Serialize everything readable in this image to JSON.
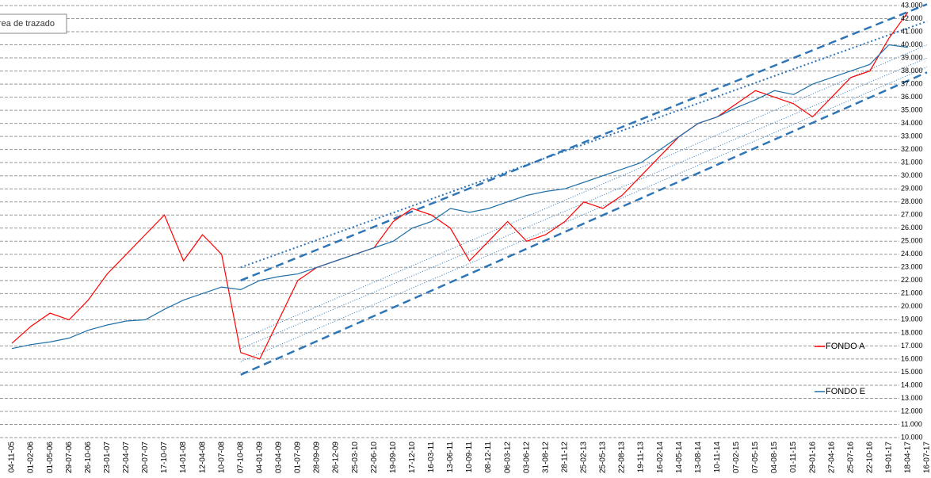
{
  "chart_data": {
    "type": "line",
    "tooltip": "rea de trazado",
    "categories": [
      "04-11-05",
      "01-02-06",
      "01-05-06",
      "29-07-06",
      "26-10-06",
      "23-01-07",
      "22-04-07",
      "20-07-07",
      "17-10-07",
      "14-01-08",
      "12-04-08",
      "10-07-08",
      "07-10-08",
      "04-01-09",
      "03-04-09",
      "01-07-09",
      "28-09-09",
      "26-12-09",
      "25-03-10",
      "22-06-10",
      "19-09-10",
      "17-12-10",
      "16-03-11",
      "13-06-11",
      "10-09-11",
      "08-12-11",
      "06-03-12",
      "03-06-12",
      "31-08-12",
      "28-11-12",
      "25-02-13",
      "25-05-13",
      "22-08-13",
      "19-11-13",
      "16-02-14",
      "14-05-14",
      "13-08-14",
      "10-11-14",
      "07-02-15",
      "07-05-15",
      "04-08-15",
      "01-11-15",
      "29-01-16",
      "27-04-16",
      "25-07-16",
      "22-10-16",
      "19-01-17",
      "18-04-17",
      "16-07-17"
    ],
    "series": [
      {
        "name": "FONDO A",
        "color": "#ff0000",
        "values": [
          17200,
          18500,
          19500,
          19000,
          20500,
          22500,
          24000,
          25500,
          27000,
          23500,
          25500,
          24000,
          16500,
          16000,
          19000,
          22000,
          23000,
          23500,
          24000,
          24500,
          26500,
          27500,
          27000,
          26000,
          23500,
          25000,
          26500,
          25000,
          25500,
          26500,
          28000,
          27500,
          28500,
          30000,
          31500,
          33000,
          34000,
          34500,
          35500,
          36500,
          36000,
          35500,
          34500,
          36000,
          37500,
          38000,
          40500,
          42500,
          null
        ]
      },
      {
        "name": "FONDO E",
        "color": "#1f6fa8",
        "values": [
          16800,
          17100,
          17300,
          17600,
          18200,
          18600,
          18900,
          19000,
          19800,
          20500,
          21000,
          21500,
          21300,
          22000,
          22300,
          22500,
          23000,
          23500,
          24000,
          24500,
          25000,
          26000,
          26500,
          27500,
          27200,
          27500,
          28000,
          28500,
          28800,
          29000,
          29500,
          30000,
          30500,
          31000,
          32000,
          33000,
          34000,
          34500,
          35200,
          35800,
          36500,
          36200,
          37000,
          37500,
          38000,
          38500,
          40000,
          39800,
          null
        ]
      }
    ],
    "trend_lines": [
      {
        "x": [
          "07-10-08",
          "16-07-17"
        ],
        "values": [
          22000,
          43100
        ],
        "style": "dashed"
      },
      {
        "x": [
          "07-10-08",
          "16-07-17"
        ],
        "values": [
          23000,
          41800
        ],
        "style": "dotted"
      },
      {
        "x": [
          "07-10-08",
          "16-07-17"
        ],
        "values": [
          17500,
          40000
        ],
        "style": "thin"
      },
      {
        "x": [
          "07-10-08",
          "16-07-17"
        ],
        "values": [
          16800,
          39000
        ],
        "style": "thin"
      },
      {
        "x": [
          "07-10-08",
          "16-07-17"
        ],
        "values": [
          15800,
          38300
        ],
        "style": "thin"
      },
      {
        "x": [
          "07-10-08",
          "16-07-17"
        ],
        "values": [
          14800,
          37900
        ],
        "style": "dashed"
      }
    ],
    "trend_color": "#2e75b6",
    "ylim": [
      10000,
      43000
    ],
    "yticks": [
      {
        "value": 10000,
        "label": "10.000"
      },
      {
        "value": 11000,
        "label": "11.000"
      },
      {
        "value": 12000,
        "label": "12.000"
      },
      {
        "value": 13000,
        "label": "13.000"
      },
      {
        "value": 14000,
        "label": "14.000"
      },
      {
        "value": 15000,
        "label": "15.000"
      },
      {
        "value": 16000,
        "label": "16.000"
      },
      {
        "value": 17000,
        "label": "17.000"
      },
      {
        "value": 18000,
        "label": "18.000"
      },
      {
        "value": 19000,
        "label": "19.000"
      },
      {
        "value": 20000,
        "label": "20.000"
      },
      {
        "value": 21000,
        "label": "21.000"
      },
      {
        "value": 22000,
        "label": "22.000"
      },
      {
        "value": 23000,
        "label": "23.000"
      },
      {
        "value": 24000,
        "label": "24.000"
      },
      {
        "value": 25000,
        "label": "25.000"
      },
      {
        "value": 26000,
        "label": "26.000"
      },
      {
        "value": 27000,
        "label": "27.000"
      },
      {
        "value": 28000,
        "label": "28.000"
      },
      {
        "value": 29000,
        "label": "29.000"
      },
      {
        "value": 30000,
        "label": "30.000"
      },
      {
        "value": 31000,
        "label": "31.000"
      },
      {
        "value": 32000,
        "label": "32.000"
      },
      {
        "value": 33000,
        "label": "33.000"
      },
      {
        "value": 34000,
        "label": "34.000"
      },
      {
        "value": 35000,
        "label": "35.000"
      },
      {
        "value": 36000,
        "label": "36.000"
      },
      {
        "value": 37000,
        "label": "37.000"
      },
      {
        "value": 38000,
        "label": "38.000"
      },
      {
        "value": 39000,
        "label": "39.000"
      },
      {
        "value": 40000,
        "label": "40.000"
      },
      {
        "value": 41000,
        "label": "41.000"
      },
      {
        "value": 42000,
        "label": "42.000"
      },
      {
        "value": 43000,
        "label": "43.000"
      }
    ],
    "grid": true
  }
}
